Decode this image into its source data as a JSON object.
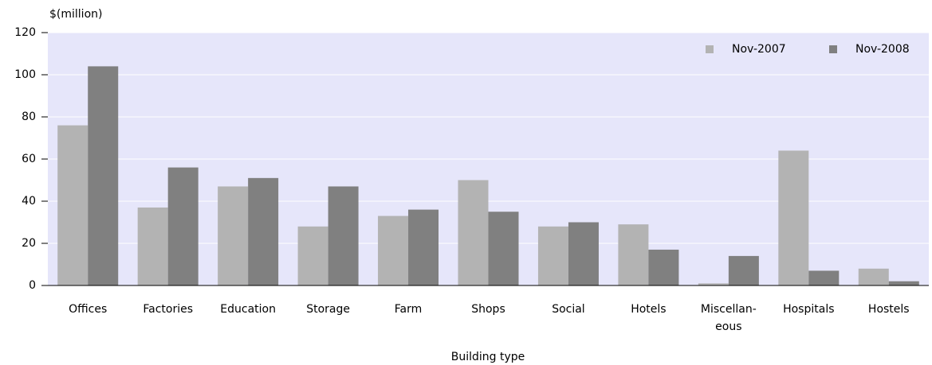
{
  "chart_data": {
    "type": "bar",
    "y_label": "$(million)",
    "x_label": "Building type",
    "categories": [
      "Offices",
      "Factories",
      "Education",
      "Storage",
      "Farm",
      "Shops",
      "Social",
      "Hotels",
      "Miscellan-eous",
      "Hospitals",
      "Hostels"
    ],
    "series": [
      {
        "name": "Nov-2007",
        "color": "#b3b3b3",
        "values": [
          76,
          37,
          47,
          28,
          33,
          50,
          28,
          29,
          1,
          64,
          8
        ]
      },
      {
        "name": "Nov-2008",
        "color": "#808080",
        "values": [
          104,
          56,
          51,
          47,
          36,
          35,
          30,
          17,
          14,
          7,
          2
        ]
      }
    ],
    "ylim": [
      0,
      120
    ],
    "yticks": [
      0,
      20,
      40,
      60,
      80,
      100,
      120
    ],
    "grid": true,
    "legend": "top-right",
    "background": "#e6e6fa"
  }
}
